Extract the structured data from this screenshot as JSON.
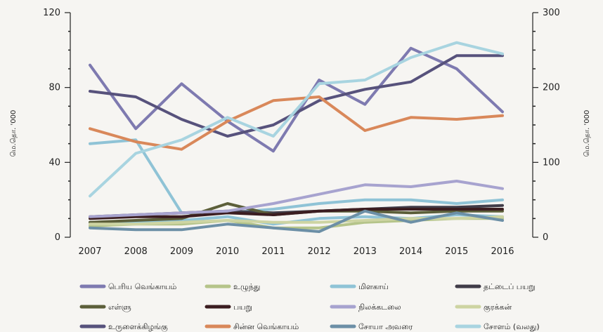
{
  "chart_data": {
    "type": "line",
    "x": [
      "2007",
      "2008",
      "2009",
      "2010",
      "2011",
      "2012",
      "2013",
      "2014",
      "2015",
      "2016"
    ],
    "y_left": {
      "label": "மெ.தொ. '000",
      "ticks": [
        "0",
        "40",
        "80",
        "120"
      ],
      "range": [
        0,
        120
      ]
    },
    "y_right": {
      "label": "மெ.தொ. '000",
      "ticks": [
        "0",
        "100",
        "200",
        "300"
      ],
      "range": [
        0,
        300
      ]
    },
    "grid": false,
    "legend_position": "bottom",
    "series": [
      {
        "name": "பெரிய வெங்காயம்",
        "color": "#7e7ab0",
        "axis": "left",
        "values": [
          92,
          58,
          82,
          62,
          46,
          84,
          71,
          101,
          90,
          67
        ]
      },
      {
        "name": "உழுந்து",
        "color": "#b5c48a",
        "axis": "left",
        "values": [
          6,
          7,
          7,
          9,
          5,
          5,
          8,
          9,
          10,
          10
        ]
      },
      {
        "name": "மிளகாய்",
        "color": "#8fc3d6",
        "axis": "left",
        "values": [
          8,
          8,
          9,
          11,
          7,
          10,
          11,
          10,
          12,
          11
        ]
      },
      {
        "name": "தட்டைப் பயறு",
        "color": "#403c48",
        "axis": "left",
        "values": [
          11,
          12,
          13,
          14,
          13,
          14,
          15,
          16,
          16,
          17
        ]
      },
      {
        "name": "எள்ளு",
        "color": "#5c5f3a",
        "axis": "left",
        "values": [
          8,
          9,
          10,
          18,
          12,
          14,
          14,
          13,
          14,
          14
        ]
      },
      {
        "name": "பயறு",
        "color": "#3b1d20",
        "axis": "left",
        "values": [
          10,
          11,
          11,
          13,
          12,
          14,
          15,
          15,
          15,
          15
        ]
      },
      {
        "name": "நிலக்கடலை",
        "color": "#a7a3cf",
        "axis": "left",
        "values": [
          11,
          12,
          13,
          14,
          18,
          23,
          28,
          27,
          30,
          26
        ]
      },
      {
        "name": "குரக்கன்",
        "color": "#cdd4a2",
        "axis": "left",
        "values": [
          7,
          7,
          8,
          9,
          8,
          8,
          9,
          10,
          10,
          11
        ]
      },
      {
        "name": "உருளைக்கிழங்கு",
        "color": "#57527c",
        "axis": "left",
        "values": [
          78,
          75,
          63,
          54,
          60,
          73,
          79,
          83,
          97,
          97
        ]
      },
      {
        "name": "சின்ன வெங்காயம்",
        "color": "#d9885a",
        "axis": "left",
        "values": [
          58,
          51,
          47,
          62,
          73,
          75,
          57,
          64,
          63,
          65
        ]
      },
      {
        "name": "சோயா அவரை",
        "color": "#6c8fa6",
        "axis": "left",
        "values": [
          5,
          4,
          4,
          7,
          5,
          3,
          14,
          8,
          13,
          9
        ]
      },
      {
        "name": "சோளம் (வலது)",
        "color": "#a8d4e0",
        "axis": "right",
        "values": [
          55,
          112,
          130,
          160,
          135,
          205,
          210,
          240,
          260,
          245
        ]
      }
    ],
    "extra_series_rendered": [
      {
        "color": "#8fc3d6",
        "axis": "left",
        "values": [
          50,
          52,
          13,
          13,
          15,
          18,
          20,
          20,
          18,
          20
        ]
      }
    ]
  }
}
